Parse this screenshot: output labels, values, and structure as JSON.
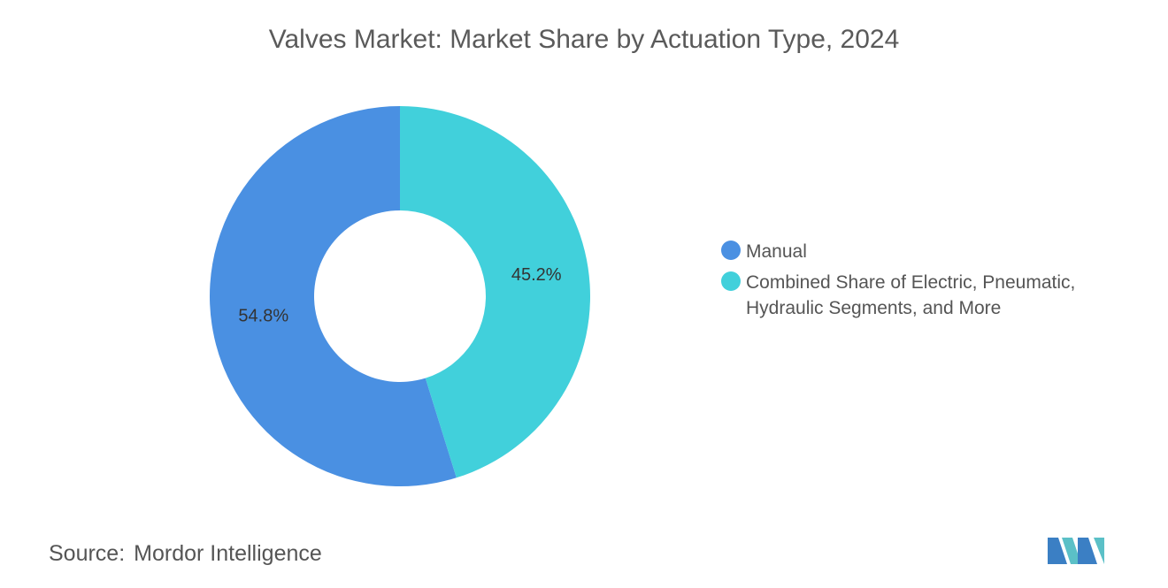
{
  "chart_data": {
    "type": "pie",
    "title": "Valves Market: Market Share by Actuation Type, 2024",
    "categories": [
      "Manual",
      "Combined Share of Electric, Pneumatic, Hydraulic Segments, and More"
    ],
    "values": [
      54.8,
      45.2
    ],
    "value_labels": [
      "54.8%",
      "45.2%"
    ],
    "colors": [
      "#4a90e2",
      "#41d0db"
    ],
    "legend": "right"
  },
  "source": {
    "label": "Source:",
    "text": "Mordor Intelligence"
  }
}
